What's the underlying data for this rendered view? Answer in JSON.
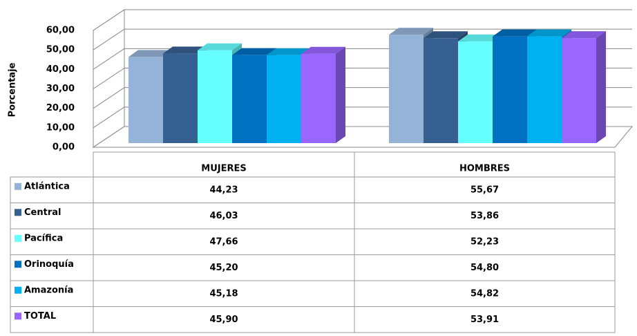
{
  "chart_data": {
    "type": "bar",
    "ylabel": "Porcentaje",
    "categories": [
      "MUJERES",
      "HOMBRES"
    ],
    "ylim": [
      0,
      60
    ],
    "yticks": [
      {
        "value": 0,
        "label": "0,00"
      },
      {
        "value": 10,
        "label": "10,00"
      },
      {
        "value": 20,
        "label": "20,00"
      },
      {
        "value": 30,
        "label": "30,00"
      },
      {
        "value": 40,
        "label": "40,00"
      },
      {
        "value": 50,
        "label": "50,00"
      },
      {
        "value": 60,
        "label": "60,00"
      }
    ],
    "grid": true,
    "series": [
      {
        "name": "Atlántica",
        "color": "#95b3d7",
        "values": [
          44.23,
          55.67
        ],
        "value_labels": [
          "44,23",
          "55,67"
        ]
      },
      {
        "name": "Central",
        "color": "#366092",
        "values": [
          46.03,
          53.86
        ],
        "value_labels": [
          "46,03",
          "53,86"
        ]
      },
      {
        "name": "Pacífica",
        "color": "#66ffff",
        "values": [
          47.66,
          52.23
        ],
        "value_labels": [
          "47,66",
          "52,23"
        ]
      },
      {
        "name": "Orinoquía",
        "color": "#0070c0",
        "values": [
          45.2,
          54.8
        ],
        "value_labels": [
          "45,20",
          "54,80"
        ]
      },
      {
        "name": "Amazonía",
        "color": "#00b0f0",
        "values": [
          45.18,
          54.82
        ],
        "value_labels": [
          "45,18",
          "54,82"
        ]
      },
      {
        "name": "TOTAL",
        "color": "#9966ff",
        "values": [
          45.9,
          53.91
        ],
        "value_labels": [
          "45,90",
          "53,91"
        ]
      }
    ]
  }
}
